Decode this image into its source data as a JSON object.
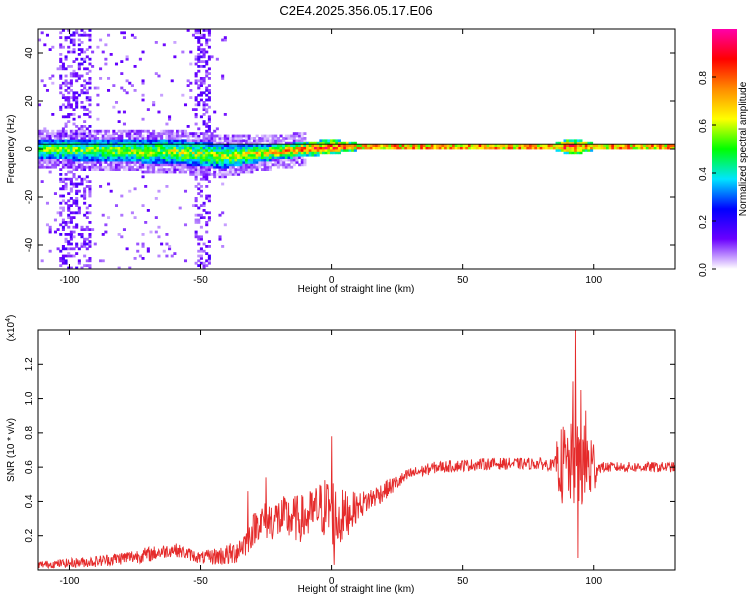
{
  "title": "C2E4.2025.356.05.17.E06",
  "chart_data": [
    {
      "type": "heatmap",
      "xlabel": "Height of straight line (km)",
      "ylabel": "Frequency (Hz)",
      "xlim": [
        -112,
        131
      ],
      "ylim": [
        -50,
        50
      ],
      "x_ticks": [
        -100,
        -50,
        0,
        50,
        100
      ],
      "y_ticks": [
        -40,
        -20,
        0,
        20,
        40
      ],
      "colorbar": {
        "label": "Normalized spectral amplitude",
        "range": [
          0,
          1
        ],
        "ticks": [
          "0.0",
          "0.2",
          "0.4",
          "0.6",
          "0.8"
        ]
      },
      "colormap": [
        "#ffffff",
        "#6a00ff",
        "#0000ff",
        "#00e5ff",
        "#00ff00",
        "#ffff00",
        "#ff8c00",
        "#ff0000",
        "#ff00aa"
      ],
      "band_center_hz": [
        [
          -112,
          0
        ],
        [
          -60,
          -1
        ],
        [
          -40,
          -3
        ],
        [
          -20,
          -1
        ],
        [
          0,
          1
        ],
        [
          131,
          1
        ]
      ],
      "band_halfwidth_hz": [
        [
          -112,
          4
        ],
        [
          -60,
          5
        ],
        [
          -45,
          5
        ],
        [
          -20,
          3
        ],
        [
          0,
          3
        ],
        [
          10,
          1.5
        ],
        [
          85,
          1.5
        ],
        [
          92,
          3.5
        ],
        [
          100,
          1.5
        ],
        [
          131,
          1.5
        ]
      ],
      "peak_amplitude": [
        [
          -112,
          0.55
        ],
        [
          -40,
          0.6
        ],
        [
          -20,
          0.7
        ],
        [
          0,
          0.85
        ],
        [
          131,
          0.85
        ]
      ],
      "horizontal_line_hz": 2
    },
    {
      "type": "line",
      "xlabel": "Height of straight line (km)",
      "ylabel": "SNR (10 * v/v)",
      "y_scale_label": "(x10",
      "y_scale_exponent": "4",
      "xlim": [
        -112,
        131
      ],
      "ylim": [
        0,
        14000
      ],
      "x_ticks": [
        -100,
        -50,
        0,
        50,
        100
      ],
      "y_ticks": [
        {
          "value": 2000,
          "label": "0.2"
        },
        {
          "value": 4000,
          "label": "0.4"
        },
        {
          "value": 6000,
          "label": "0.6"
        },
        {
          "value": 8000,
          "label": "0.8"
        },
        {
          "value": 10000,
          "label": "1.0"
        },
        {
          "value": 12000,
          "label": "1.2"
        }
      ],
      "color": "#e52b2b",
      "trend": [
        [
          -112,
          300
        ],
        [
          -90,
          500
        ],
        [
          -70,
          900
        ],
        [
          -60,
          1200
        ],
        [
          -50,
          700
        ],
        [
          -38,
          900
        ],
        [
          -33,
          1600
        ],
        [
          -28,
          2800
        ],
        [
          -20,
          3000
        ],
        [
          -10,
          3000
        ],
        [
          -5,
          3600
        ],
        [
          0,
          3600
        ],
        [
          2,
          2900
        ],
        [
          10,
          3700
        ],
        [
          20,
          4600
        ],
        [
          30,
          5600
        ],
        [
          40,
          6000
        ],
        [
          60,
          6200
        ],
        [
          80,
          6200
        ],
        [
          85,
          6100
        ],
        [
          100,
          6000
        ],
        [
          131,
          6000
        ]
      ],
      "noise": [
        [
          -112,
          200
        ],
        [
          -70,
          450
        ],
        [
          -50,
          350
        ],
        [
          -35,
          800
        ],
        [
          -20,
          1300
        ],
        [
          -5,
          1500
        ],
        [
          0,
          2200
        ],
        [
          10,
          800
        ],
        [
          30,
          350
        ],
        [
          85,
          350
        ],
        [
          88,
          2500
        ],
        [
          99,
          2500
        ],
        [
          102,
          300
        ],
        [
          131,
          300
        ]
      ],
      "spikes": [
        [
          -32,
          4600
        ],
        [
          -25,
          5400
        ],
        [
          0,
          7800
        ],
        [
          1,
          300
        ],
        [
          86,
          7500
        ],
        [
          92,
          11000
        ],
        [
          93,
          14000
        ],
        [
          94,
          700
        ],
        [
          95,
          10500
        ],
        [
          97,
          9300
        ]
      ]
    }
  ]
}
